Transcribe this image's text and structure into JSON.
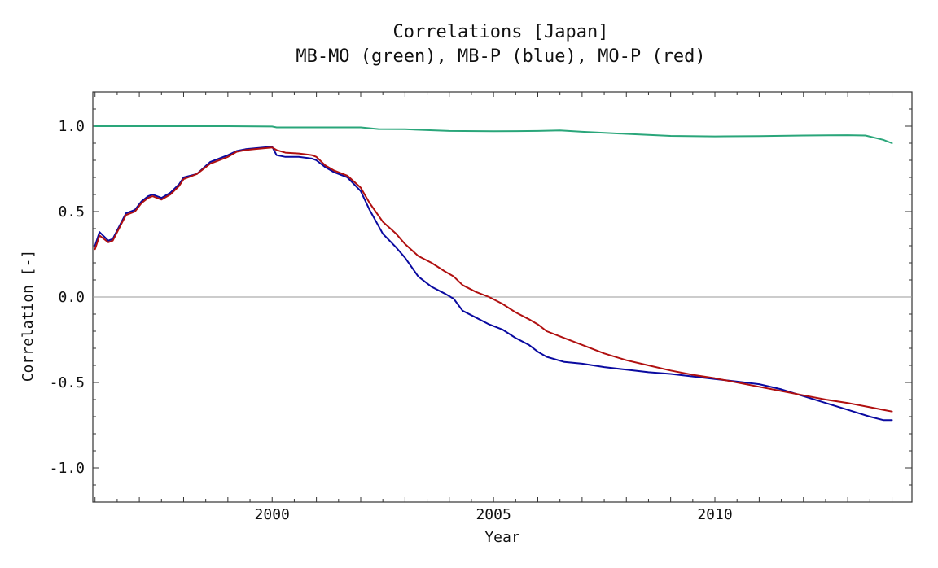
{
  "chart_data": {
    "type": "line",
    "title": "Correlations [Japan]",
    "subtitle": "MB-MO (green), MB-P (blue), MO-P (red)",
    "xlabel": "Year",
    "ylabel": "Correlation [-]",
    "xlim": [
      1995.95,
      2014.45
    ],
    "ylim": [
      -1.2,
      1.2
    ],
    "x_ticks": [
      2000,
      2005,
      2010
    ],
    "x_tick_labels": [
      "2000",
      "2005",
      "2010"
    ],
    "y_ticks": [
      1.0,
      0.5,
      0.0,
      -0.5,
      -1.0
    ],
    "y_tick_labels": [
      "1.0",
      "0.5",
      "0.0",
      "-0.5",
      "-1.0"
    ],
    "zero_line": true,
    "grid": false,
    "legend": "none",
    "series": [
      {
        "name": "MB-MO",
        "color": "#2aa67a",
        "x": [
          1996.0,
          1997.0,
          1998.0,
          1999.0,
          2000.0,
          2000.1,
          2001.0,
          2002.0,
          2002.4,
          2003.0,
          2004.0,
          2005.0,
          2006.0,
          2006.5,
          2007.0,
          2008.0,
          2009.0,
          2010.0,
          2011.0,
          2012.0,
          2013.0,
          2013.4,
          2013.8,
          2014.0
        ],
        "values": [
          1.0,
          1.0,
          1.0,
          1.0,
          0.998,
          0.993,
          0.993,
          0.993,
          0.983,
          0.982,
          0.972,
          0.97,
          0.972,
          0.975,
          0.967,
          0.955,
          0.943,
          0.94,
          0.942,
          0.945,
          0.947,
          0.945,
          0.92,
          0.9
        ]
      },
      {
        "name": "MB-P",
        "color": "#0a0aa0",
        "x": [
          1996.0,
          1996.1,
          1996.3,
          1996.4,
          1996.6,
          1996.7,
          1996.9,
          1997.05,
          1997.2,
          1997.3,
          1997.5,
          1997.7,
          1997.9,
          1998.0,
          1998.3,
          1998.6,
          1999.0,
          1999.2,
          1999.4,
          1999.6,
          1999.8,
          2000.0,
          2000.1,
          2000.3,
          2000.6,
          2000.9,
          2001.0,
          2001.2,
          2001.4,
          2001.7,
          2002.0,
          2002.2,
          2002.5,
          2002.8,
          2003.0,
          2003.3,
          2003.6,
          2003.9,
          2004.1,
          2004.3,
          2004.6,
          2004.9,
          2005.2,
          2005.5,
          2005.8,
          2006.0,
          2006.2,
          2006.6,
          2007.0,
          2007.5,
          2008.0,
          2008.5,
          2009.0,
          2009.5,
          2010.0,
          2010.5,
          2011.0,
          2011.5,
          2012.0,
          2012.5,
          2013.0,
          2013.5,
          2013.8,
          2014.0
        ],
        "values": [
          0.3,
          0.38,
          0.33,
          0.34,
          0.44,
          0.49,
          0.51,
          0.56,
          0.59,
          0.6,
          0.58,
          0.61,
          0.66,
          0.7,
          0.72,
          0.79,
          0.83,
          0.855,
          0.865,
          0.87,
          0.875,
          0.88,
          0.83,
          0.82,
          0.82,
          0.81,
          0.8,
          0.76,
          0.73,
          0.7,
          0.62,
          0.51,
          0.37,
          0.29,
          0.23,
          0.12,
          0.06,
          0.02,
          -0.01,
          -0.08,
          -0.12,
          -0.16,
          -0.19,
          -0.24,
          -0.28,
          -0.32,
          -0.35,
          -0.38,
          -0.39,
          -0.41,
          -0.425,
          -0.44,
          -0.45,
          -0.465,
          -0.48,
          -0.495,
          -0.51,
          -0.54,
          -0.58,
          -0.62,
          -0.66,
          -0.7,
          -0.72,
          -0.72
        ]
      },
      {
        "name": "MO-P",
        "color": "#b01010",
        "x": [
          1996.0,
          1996.1,
          1996.3,
          1996.4,
          1996.6,
          1996.7,
          1996.9,
          1997.05,
          1997.2,
          1997.3,
          1997.5,
          1997.7,
          1997.9,
          1998.0,
          1998.3,
          1998.6,
          1999.0,
          1999.2,
          1999.4,
          1999.6,
          1999.8,
          2000.0,
          2000.1,
          2000.3,
          2000.6,
          2000.9,
          2001.0,
          2001.2,
          2001.4,
          2001.7,
          2002.0,
          2002.2,
          2002.5,
          2002.8,
          2003.0,
          2003.3,
          2003.6,
          2003.9,
          2004.1,
          2004.3,
          2004.6,
          2004.9,
          2005.2,
          2005.5,
          2005.8,
          2006.0,
          2006.2,
          2006.6,
          2007.0,
          2007.5,
          2008.0,
          2008.5,
          2009.0,
          2009.5,
          2010.0,
          2010.5,
          2011.0,
          2011.5,
          2012.0,
          2012.5,
          2013.0,
          2013.5,
          2013.8,
          2014.0
        ],
        "values": [
          0.28,
          0.36,
          0.32,
          0.33,
          0.43,
          0.48,
          0.5,
          0.55,
          0.58,
          0.59,
          0.57,
          0.6,
          0.65,
          0.69,
          0.72,
          0.78,
          0.82,
          0.85,
          0.86,
          0.865,
          0.87,
          0.875,
          0.86,
          0.845,
          0.84,
          0.83,
          0.82,
          0.77,
          0.74,
          0.71,
          0.64,
          0.55,
          0.44,
          0.37,
          0.31,
          0.24,
          0.2,
          0.15,
          0.12,
          0.07,
          0.03,
          0.0,
          -0.04,
          -0.09,
          -0.13,
          -0.16,
          -0.2,
          -0.24,
          -0.28,
          -0.33,
          -0.37,
          -0.4,
          -0.43,
          -0.455,
          -0.475,
          -0.5,
          -0.525,
          -0.55,
          -0.575,
          -0.6,
          -0.62,
          -0.645,
          -0.66,
          -0.67
        ]
      }
    ]
  }
}
